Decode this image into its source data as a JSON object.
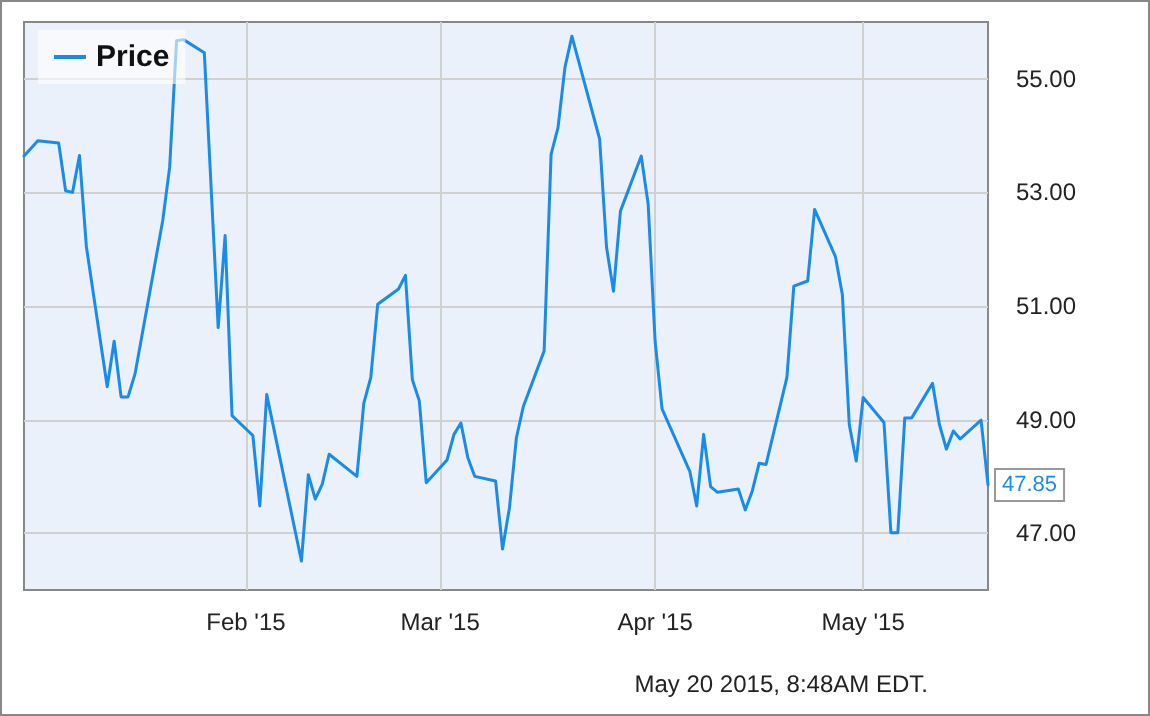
{
  "chart_data": {
    "type": "line",
    "annotations": [
      "May 20 2015, 8:48AM EDT."
    ],
    "x": [
      "2014-12-31",
      "2015-01-02",
      "2015-01-05",
      "2015-01-06",
      "2015-01-07",
      "2015-01-08",
      "2015-01-09",
      "2015-01-12",
      "2015-01-13",
      "2015-01-14",
      "2015-01-15",
      "2015-01-16",
      "2015-01-20",
      "2015-01-21",
      "2015-01-22",
      "2015-01-23",
      "2015-01-26",
      "2015-01-28",
      "2015-01-29",
      "2015-01-30",
      "2015-02-02",
      "2015-02-03",
      "2015-02-04",
      "2015-02-09",
      "2015-02-10",
      "2015-02-11",
      "2015-02-12",
      "2015-02-13",
      "2015-02-17",
      "2015-02-18",
      "2015-02-19",
      "2015-02-20",
      "2015-02-23",
      "2015-02-24",
      "2015-02-25",
      "2015-02-26",
      "2015-02-27",
      "2015-03-02",
      "2015-03-03",
      "2015-03-04",
      "2015-03-05",
      "2015-03-06",
      "2015-03-09",
      "2015-03-10",
      "2015-03-11",
      "2015-03-12",
      "2015-03-13",
      "2015-03-16",
      "2015-03-17",
      "2015-03-18",
      "2015-03-19",
      "2015-03-20",
      "2015-03-24",
      "2015-03-25",
      "2015-03-26",
      "2015-03-27",
      "2015-03-30",
      "2015-03-31",
      "2015-04-01",
      "2015-04-02",
      "2015-04-06",
      "2015-04-07",
      "2015-04-08",
      "2015-04-09",
      "2015-04-10",
      "2015-04-13",
      "2015-04-14",
      "2015-04-15",
      "2015-04-16",
      "2015-04-17",
      "2015-04-20",
      "2015-04-21",
      "2015-04-23",
      "2015-04-24",
      "2015-04-27",
      "2015-04-28",
      "2015-04-29",
      "2015-04-30",
      "2015-05-01",
      "2015-05-04",
      "2015-05-05",
      "2015-05-06",
      "2015-05-07",
      "2015-05-08",
      "2015-05-11",
      "2015-05-12",
      "2015-05-13",
      "2015-05-14",
      "2015-05-15",
      "2015-05-18",
      "2015-05-19"
    ],
    "series": [
      {
        "name": "Price",
        "color": "#1a8be8",
        "values": [
          53.64,
          53.91,
          53.87,
          53.03,
          53.0,
          53.65,
          52.04,
          49.58,
          50.38,
          49.4,
          49.4,
          49.8,
          52.5,
          53.44,
          55.67,
          55.69,
          55.46,
          50.62,
          52.24,
          49.07,
          48.72,
          47.48,
          49.44,
          46.51,
          48.03,
          47.6,
          47.86,
          48.39,
          48.0,
          49.29,
          49.74,
          51.03,
          51.3,
          51.54,
          49.7,
          49.33,
          47.89,
          48.29,
          48.74,
          48.94,
          48.33,
          48.0,
          47.92,
          46.72,
          47.45,
          48.68,
          49.23,
          50.21,
          53.67,
          54.14,
          55.2,
          55.75,
          53.94,
          52.03,
          51.26,
          52.67,
          53.64,
          52.79,
          50.38,
          49.19,
          48.09,
          47.48,
          48.74,
          47.82,
          47.72,
          47.78,
          47.41,
          47.74,
          48.23,
          48.21,
          49.74,
          51.35,
          51.44,
          52.7,
          51.87,
          51.2,
          48.91,
          48.27,
          49.39,
          48.95,
          47.01,
          47.01,
          49.03,
          49.03,
          49.64,
          48.91,
          48.48,
          48.8,
          48.66,
          48.99,
          47.85
        ],
        "value_labels": [
          null,
          null,
          null,
          null,
          null,
          null,
          null,
          null,
          null,
          null,
          null,
          null,
          null,
          null,
          null,
          null,
          null,
          null,
          null,
          null,
          null,
          null,
          null,
          null,
          null,
          null,
          null,
          null,
          null,
          null,
          null,
          null,
          null,
          null,
          null,
          null,
          null,
          null,
          null,
          null,
          null,
          null,
          null,
          null,
          null,
          null,
          null,
          null,
          null,
          null,
          null,
          null,
          null,
          null,
          null,
          null,
          null,
          null,
          null,
          null,
          null,
          null,
          null,
          null,
          null,
          null,
          null,
          null,
          null,
          null,
          null,
          null,
          null,
          null,
          null,
          null,
          null,
          null,
          null,
          null,
          null,
          null,
          null,
          null,
          null,
          null,
          null,
          null,
          null,
          null,
          "47.85"
        ]
      }
    ],
    "xlim": [
      "2014-12-31",
      "2015-05-19"
    ],
    "xticks": [
      {
        "value": "2015-02-01",
        "label": "Feb '15"
      },
      {
        "value": "2015-03-01",
        "label": "Mar '15"
      },
      {
        "value": "2015-04-01",
        "label": "Apr '15"
      },
      {
        "value": "2015-05-01",
        "label": "May '15"
      }
    ],
    "ylim": [
      46,
      56
    ],
    "yticks": [
      {
        "value": 47,
        "label": "47.00"
      },
      {
        "value": 49,
        "label": "49.00"
      },
      {
        "value": 51,
        "label": "51.00"
      },
      {
        "value": 53,
        "label": "53.00"
      },
      {
        "value": 55,
        "label": "55.00"
      }
    ],
    "grid": true,
    "legend": "top left",
    "marker": "none",
    "line_style": "solid"
  }
}
